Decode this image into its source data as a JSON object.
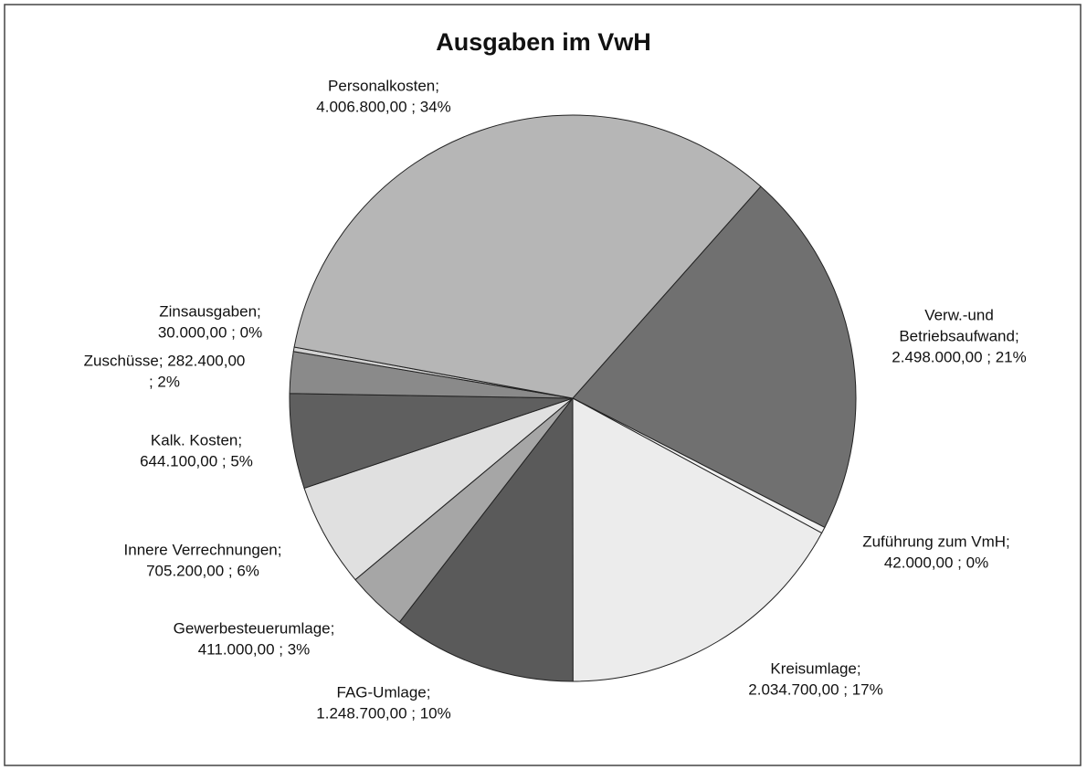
{
  "chart_data": {
    "type": "pie",
    "title": "Ausgaben im VwH",
    "categories": [
      "Verw.-und Betriebsaufwand",
      "Zuführung zum VmH",
      "Kreisumlage",
      "FAG-Umlage",
      "Gewerbesteuerumlage",
      "Innere Verrechnungen",
      "Kalk. Kosten",
      "Zuschüsse",
      "Zinsausgaben",
      "Personalkosten"
    ],
    "values": [
      2498000,
      42000,
      2034700,
      1248700,
      411000,
      705200,
      644100,
      282400,
      30000,
      4006800
    ],
    "colors": [
      "#707070",
      "#f2f2f2",
      "#ececec",
      "#5a5a5a",
      "#a6a6a6",
      "#e0e0e0",
      "#5f5f5f",
      "#8a8a8a",
      "#d2d2d2",
      "#b6b6b6"
    ],
    "labels": [
      [
        "Verw.-und",
        "Betriebsaufwand;",
        "2.498.000,00 ; 21%"
      ],
      [
        "Zuführung zum VmH;",
        "42.000,00 ; 0%"
      ],
      [
        "Kreisumlage;",
        "2.034.700,00 ; 17%"
      ],
      [
        "FAG-Umlage;",
        "1.248.700,00 ; 10%"
      ],
      [
        "Gewerbesteuerumlage;",
        "411.000,00 ; 3%"
      ],
      [
        "Innere Verrechnungen;",
        "705.200,00 ; 6%"
      ],
      [
        "Kalk. Kosten;",
        "644.100,00 ; 5%"
      ],
      [
        "Zuschüsse; 282.400,00",
        "; 2%"
      ],
      [
        "Zinsausgaben;",
        "30.000,00 ; 0%"
      ],
      [
        "Personalkosten;",
        "4.006.800,00 ; 34%"
      ]
    ]
  }
}
